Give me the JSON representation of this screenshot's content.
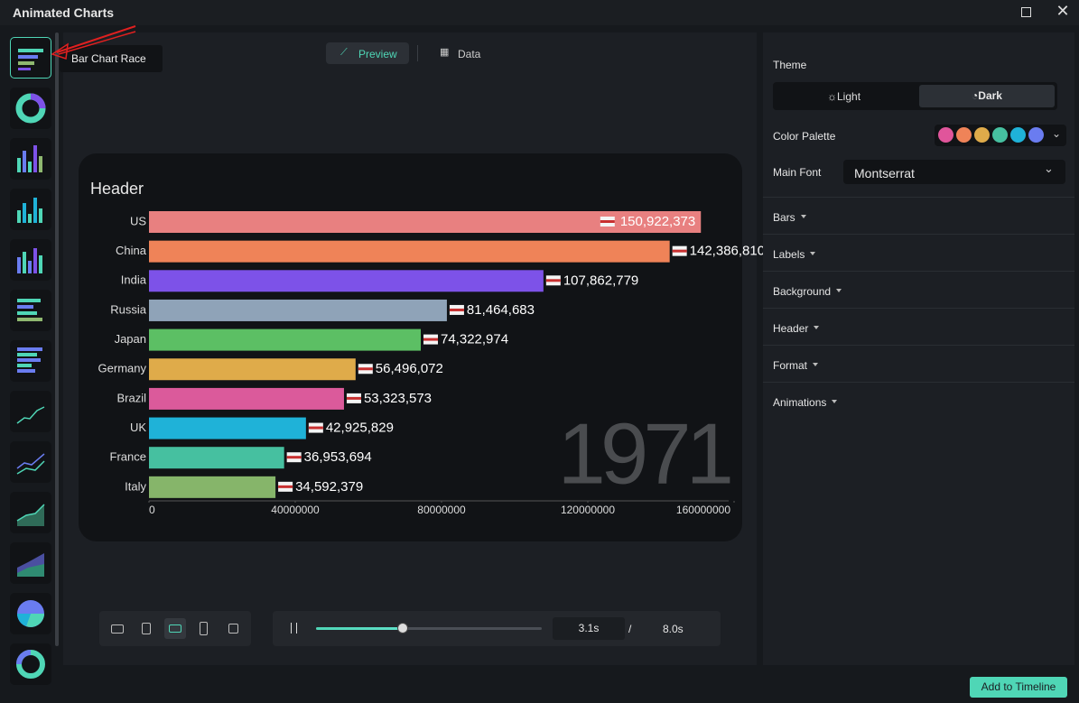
{
  "window": {
    "title": "Animated Charts"
  },
  "tooltip": "Bar Chart Race",
  "tabs": [
    "Preview",
    "Data"
  ],
  "chart_data": {
    "type": "bar",
    "title": "Header",
    "annotation": "1971",
    "categories": [
      "US",
      "China",
      "India",
      "Russia",
      "Japan",
      "Germany",
      "Brazil",
      "UK",
      "France",
      "Italy"
    ],
    "values": [
      150922373,
      142386810,
      107862779,
      81464683,
      74322974,
      56496072,
      53323573,
      42925829,
      36953694,
      34592379
    ],
    "value_labels": [
      "150,922,373",
      "142,386,810",
      "107,862,779",
      "81,464,683",
      "74,322,974",
      "56,496,072",
      "53,323,573",
      "42,925,829",
      "36,953,694",
      "34,592,379"
    ],
    "colors": [
      "#e88080",
      "#ef8358",
      "#7d52e8",
      "#8fa3b8",
      "#5cbf64",
      "#dfab4a",
      "#db5a9b",
      "#1fb2d8",
      "#46c0a0",
      "#86b56a"
    ],
    "xlim": [
      0,
      160000000
    ],
    "xticks": [
      0,
      40000000,
      80000000,
      120000000,
      160000000
    ]
  },
  "playback": {
    "current": "3.1s",
    "separator": "/",
    "total": "8.0s"
  },
  "settings": {
    "theme_label": "Theme",
    "theme_options": [
      "Light",
      "Dark"
    ],
    "palette_label": "Color Palette",
    "palette": [
      "#e0559b",
      "#ef8358",
      "#dfab4a",
      "#46c0a0",
      "#1fb2d8",
      "#6a7cf0"
    ],
    "font_label": "Main Font",
    "font": "Montserrat",
    "sections": [
      "Bars",
      "Labels",
      "Background",
      "Header",
      "Format",
      "Animations"
    ]
  },
  "add_button": "Add to Timeline"
}
